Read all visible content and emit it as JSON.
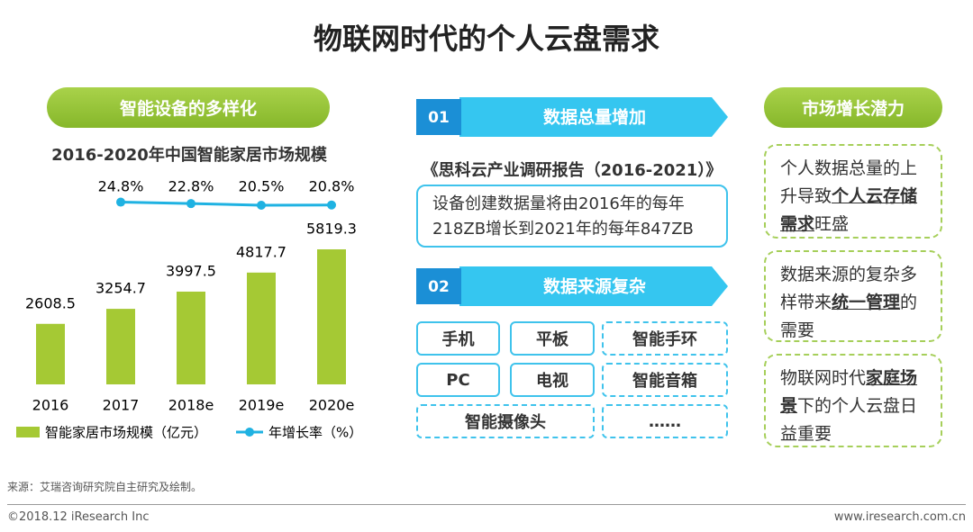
{
  "title": "物联网时代的个人云盘需求",
  "left": {
    "heading": "智能设备的多样化"
  },
  "chart_data": {
    "type": "bar",
    "title": "2016-2020年中国智能家居市场规模",
    "categories": [
      "2016",
      "2017",
      "2018e",
      "2019e",
      "2020e"
    ],
    "series": [
      {
        "name": "智能家居市场规模（亿元）",
        "color": "#a5c934",
        "values": [
          2608.5,
          3254.7,
          3997.5,
          4817.7,
          5819.3
        ]
      },
      {
        "name": "年增长率（%）",
        "color": "#1fb2e2",
        "values": [
          null,
          24.8,
          22.8,
          20.5,
          20.8
        ],
        "value_labels": [
          null,
          "24.8%",
          "22.8%",
          "20.5%",
          "20.8%"
        ]
      }
    ]
  },
  "middle": {
    "sections": [
      {
        "number": "01",
        "heading": "数据总量增加",
        "source": "《思科云产业调研报告（2016-2021）》",
        "text": [
          "设备创建数据量将由2016年的每年",
          "218ZB增长到2021年的每年847ZB"
        ]
      },
      {
        "number": "02",
        "heading": "数据来源复杂",
        "items": [
          "手机",
          "平板",
          "智能手环",
          "PC",
          "电视",
          "智能音箱",
          "智能摄像头",
          "……"
        ]
      }
    ]
  },
  "right": {
    "heading": "市场增长潜力",
    "boxes": [
      [
        {
          "text": "个人数据总量的上升导致"
        },
        {
          "text": "个人云存储需求",
          "bold": true
        },
        {
          "text": "旺盛"
        }
      ],
      [
        {
          "text": "数据来源的复杂多样带来"
        },
        {
          "text": "统一管理",
          "bold": true
        },
        {
          "text": "的需要"
        }
      ],
      [
        {
          "text": "物联网时代"
        },
        {
          "text": "家庭场景",
          "bold": true
        },
        {
          "text": "下的个人云盘日益重要"
        }
      ]
    ]
  },
  "footer": {
    "source": "来源：艾瑞咨询研究院自主研究及绘制。",
    "copyright": "©2018.12 iResearch Inc",
    "website": "www.iresearch.com.cn"
  }
}
